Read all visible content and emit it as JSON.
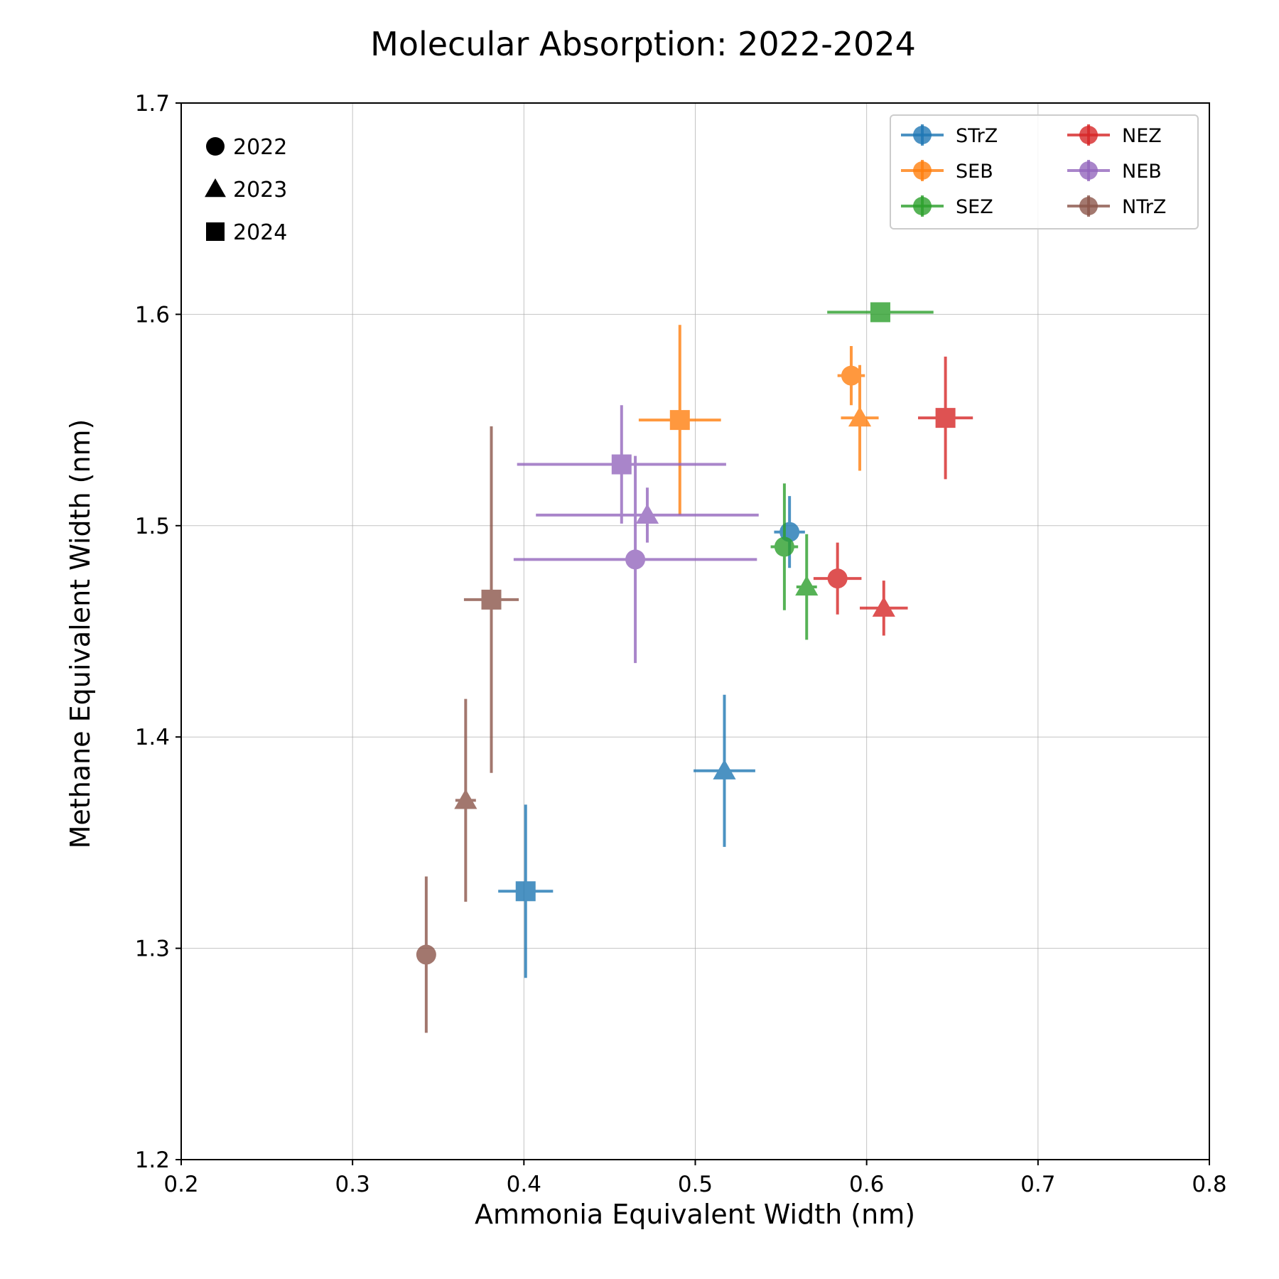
{
  "chart_data": {
    "type": "scatter",
    "title": "Molecular Absorption: 2022-2024",
    "xlabel": "Ammonia Equivalent Width (nm)",
    "ylabel": "Methane Equivalent Width (nm)",
    "xlim": [
      0.2,
      0.8
    ],
    "ylim": [
      1.2,
      1.7
    ],
    "xticks": [
      "0.2",
      "0.3",
      "0.4",
      "0.5",
      "0.6",
      "0.7",
      "0.8"
    ],
    "yticks": [
      "1.2",
      "1.3",
      "1.4",
      "1.5",
      "1.6",
      "1.7"
    ],
    "grid": true,
    "legend_position": "top-right",
    "year_key_position": "top-left",
    "years": [
      {
        "label": "2022",
        "marker": "circle"
      },
      {
        "label": "2023",
        "marker": "triangle"
      },
      {
        "label": "2024",
        "marker": "square"
      }
    ],
    "series": [
      {
        "name": "STrZ",
        "color": "#1f77b4",
        "points": [
          {
            "year": "2022",
            "x": 0.555,
            "y": 1.497,
            "xerr": 0.009,
            "yerr": 0.017
          },
          {
            "year": "2023",
            "x": 0.517,
            "y": 1.384,
            "xerr": 0.018,
            "yerr": 0.036
          },
          {
            "year": "2024",
            "x": 0.401,
            "y": 1.327,
            "xerr": 0.016,
            "yerr": 0.041
          }
        ]
      },
      {
        "name": "SEB",
        "color": "#ff7f0e",
        "points": [
          {
            "year": "2022",
            "x": 0.591,
            "y": 1.571,
            "xerr": 0.008,
            "yerr": 0.014
          },
          {
            "year": "2023",
            "x": 0.596,
            "y": 1.551,
            "xerr": 0.011,
            "yerr": 0.025
          },
          {
            "year": "2024",
            "x": 0.491,
            "y": 1.55,
            "xerr": 0.024,
            "yerr": 0.045
          }
        ]
      },
      {
        "name": "SEZ",
        "color": "#2ca02c",
        "points": [
          {
            "year": "2022",
            "x": 0.552,
            "y": 1.49,
            "xerr": 0.008,
            "yerr": 0.03
          },
          {
            "year": "2023",
            "x": 0.565,
            "y": 1.471,
            "xerr": 0.006,
            "yerr": 0.025
          },
          {
            "year": "2024",
            "x": 0.608,
            "y": 1.601,
            "xerr": 0.031,
            "yerr": 0.002
          }
        ]
      },
      {
        "name": "NEZ",
        "color": "#d62728",
        "points": [
          {
            "year": "2022",
            "x": 0.583,
            "y": 1.475,
            "xerr": 0.014,
            "yerr": 0.017
          },
          {
            "year": "2023",
            "x": 0.61,
            "y": 1.461,
            "xerr": 0.014,
            "yerr": 0.013
          },
          {
            "year": "2024",
            "x": 0.646,
            "y": 1.551,
            "xerr": 0.016,
            "yerr": 0.029
          }
        ]
      },
      {
        "name": "NEB",
        "color": "#9467bd",
        "points": [
          {
            "year": "2022",
            "x": 0.465,
            "y": 1.484,
            "xerr": 0.071,
            "yerr": 0.049
          },
          {
            "year": "2023",
            "x": 0.472,
            "y": 1.505,
            "xerr": 0.065,
            "yerr": 0.013
          },
          {
            "year": "2024",
            "x": 0.457,
            "y": 1.529,
            "xerr": 0.061,
            "yerr": 0.028
          }
        ]
      },
      {
        "name": "NTrZ",
        "color": "#8c564b",
        "points": [
          {
            "year": "2022",
            "x": 0.343,
            "y": 1.297,
            "xerr": 0.002,
            "yerr": 0.037
          },
          {
            "year": "2023",
            "x": 0.366,
            "y": 1.37,
            "xerr": 0.006,
            "yerr": 0.048
          },
          {
            "year": "2024",
            "x": 0.381,
            "y": 1.465,
            "xerr": 0.016,
            "yerr": 0.082
          }
        ]
      }
    ]
  }
}
